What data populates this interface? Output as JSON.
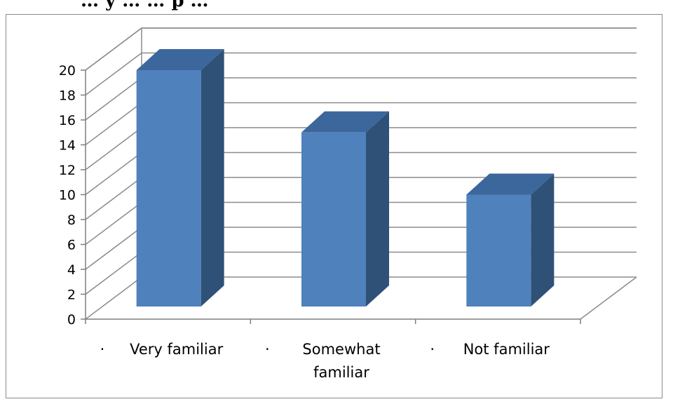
{
  "header": {
    "visible_text": "… y … … p …"
  },
  "chart_data": {
    "type": "bar",
    "categories": [
      "Very familiar",
      "Somewhat familiar",
      "Not familiar"
    ],
    "category_label_lines": [
      [
        "Very familiar"
      ],
      [
        "Somewhat",
        "familiar"
      ],
      [
        "Not familiar"
      ]
    ],
    "category_markers": [
      "·",
      "·",
      "·"
    ],
    "values": [
      20,
      15,
      10
    ],
    "ylim": [
      0,
      20
    ],
    "yticks": [
      "0",
      "2",
      "4",
      "6",
      "8",
      "10",
      "12",
      "14",
      "16",
      "18",
      "20"
    ],
    "grid": true,
    "legend": "none",
    "three_d": true,
    "colors": {
      "bar_front": "#4f81bd",
      "bar_side": "#2f5177",
      "bar_top": "#3b679c",
      "grid": "#8c8c8c",
      "axis": "#7f7f7f"
    }
  }
}
